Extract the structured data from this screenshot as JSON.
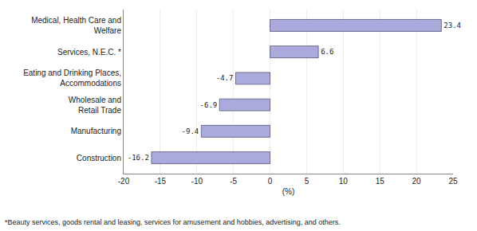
{
  "chart_data": {
    "type": "bar",
    "orientation": "horizontal",
    "categories": [
      "Construction",
      "Manufacturing",
      "Wholesale and\nRetail Trade",
      "Eating and Drinking Places,\nAccommodations",
      "Services, N.E.C. *",
      "Medical, Health Care and\nWelfare"
    ],
    "values": [
      -16.2,
      -9.4,
      -6.9,
      -4.7,
      6.6,
      23.4
    ],
    "color": "#aaaadd",
    "xlabel": "(%)",
    "annotations": [
      "*Beauty services, goods rental and leasing, services for amusement and hobbies, advertising, and others."
    ],
    "xlim": [
      -20,
      25
    ],
    "xticks": [
      -20,
      -15,
      -10,
      -5,
      0,
      5,
      10,
      15,
      20,
      25
    ],
    "grid": true,
    "data_labels": true
  }
}
